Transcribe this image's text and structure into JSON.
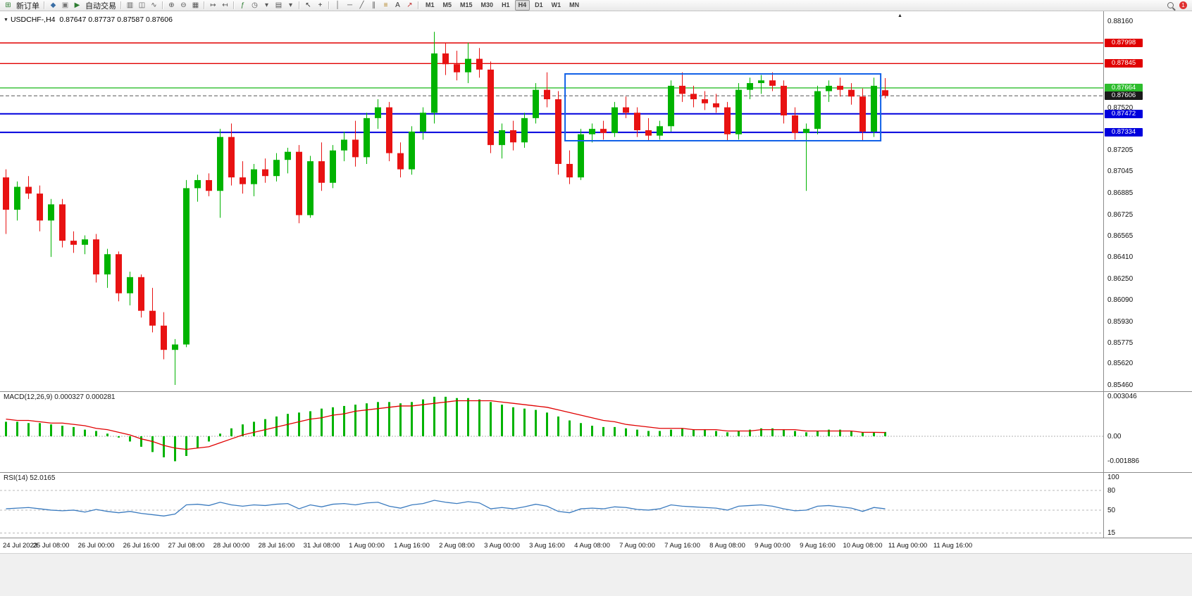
{
  "toolbar": {
    "notification_count": "1",
    "timeframes": [
      "M1",
      "M5",
      "M15",
      "M30",
      "H1",
      "H4",
      "D1",
      "W1",
      "MN"
    ],
    "active_timeframe": "H4",
    "items": [
      {
        "t": "icon",
        "n": "new-order-icon",
        "g": "⊞",
        "c": "#2e7d32"
      },
      {
        "t": "label",
        "n": "new-order-label",
        "text": "新订单"
      },
      {
        "t": "sep"
      },
      {
        "t": "icon",
        "n": "marker-icon",
        "g": "◆",
        "c": "#3a6ea5"
      },
      {
        "t": "icon",
        "n": "charts-icon",
        "g": "▣",
        "c": "#777777"
      },
      {
        "t": "icon",
        "n": "autotrade-icon",
        "g": "▶",
        "c": "#2e7d32"
      },
      {
        "t": "label",
        "n": "autotrade-label",
        "text": "自动交易"
      },
      {
        "t": "sep"
      },
      {
        "t": "icon",
        "n": "bar-chart-icon",
        "g": "▥",
        "c": "#555555"
      },
      {
        "t": "icon",
        "n": "candlestick-chart-icon",
        "g": "◫",
        "c": "#555555"
      },
      {
        "t": "icon",
        "n": "line-chart-icon",
        "g": "∿",
        "c": "#555555"
      },
      {
        "t": "sep"
      },
      {
        "t": "icon",
        "n": "zoom-in-icon",
        "g": "⊕",
        "c": "#555555"
      },
      {
        "t": "icon",
        "n": "zoom-out-icon",
        "g": "⊖",
        "c": "#555555"
      },
      {
        "t": "icon",
        "n": "tile-windows-icon",
        "g": "▦",
        "c": "#555555"
      },
      {
        "t": "sep"
      },
      {
        "t": "icon",
        "n": "auto-scroll-icon",
        "g": "↦",
        "c": "#555555"
      },
      {
        "t": "icon",
        "n": "chart-shift-icon",
        "g": "↤",
        "c": "#555555"
      },
      {
        "t": "sep"
      },
      {
        "t": "icon",
        "n": "indicators-icon",
        "g": "ƒ",
        "c": "#2e7d32"
      },
      {
        "t": "icon",
        "n": "periods-dropdown-icon",
        "g": "◷",
        "c": "#555555"
      },
      {
        "t": "icon",
        "n": "dropdown-arrow-icon",
        "g": "▾",
        "c": "#555555"
      },
      {
        "t": "icon",
        "n": "templates-icon",
        "g": "▤",
        "c": "#555555"
      },
      {
        "t": "icon",
        "n": "dropdown-arrow-icon",
        "g": "▾",
        "c": "#555555"
      },
      {
        "t": "sep"
      },
      {
        "t": "icon",
        "n": "cursor-icon",
        "g": "↖",
        "c": "#333333"
      },
      {
        "t": "icon",
        "n": "crosshair-icon",
        "g": "+",
        "c": "#333333"
      },
      {
        "t": "sep"
      },
      {
        "t": "icon",
        "n": "vertical-line-icon",
        "g": "│",
        "c": "#555555"
      },
      {
        "t": "icon",
        "n": "horizontal-line-icon",
        "g": "─",
        "c": "#555555"
      },
      {
        "t": "icon",
        "n": "trendline-icon",
        "g": "╱",
        "c": "#555555"
      },
      {
        "t": "icon",
        "n": "channel-icon",
        "g": "∥",
        "c": "#555555"
      },
      {
        "t": "icon",
        "n": "fibonacci-icon",
        "g": "≡",
        "c": "#b08020"
      },
      {
        "t": "icon",
        "n": "text-icon",
        "g": "A",
        "c": "#333333"
      },
      {
        "t": "icon",
        "n": "arrow-object-icon",
        "g": "↗",
        "c": "#c03030"
      },
      {
        "t": "sep"
      }
    ]
  },
  "chart": {
    "title": "USDCHF-,H4",
    "ohlc": "0.87647 0.87737 0.87587 0.87606"
  },
  "chart_data": {
    "type": "candlestick",
    "symbol": "USDCHF-",
    "timeframe": "H4",
    "current_bar": {
      "open": 0.87647,
      "high": 0.87737,
      "low": 0.87587,
      "close": 0.87606
    },
    "colors": {
      "bull": "#00b300",
      "bear": "#e81212",
      "background": "#ffffff"
    },
    "price_axis": {
      "ylim": [
        0.85413,
        0.88233
      ],
      "ticks": [
        "0.88160",
        "0.87520",
        "0.87205",
        "0.87045",
        "0.86885",
        "0.86725",
        "0.86565",
        "0.86410",
        "0.86250",
        "0.86090",
        "0.85930",
        "0.85775",
        "0.85620",
        "0.85460"
      ]
    },
    "price_tags": [
      {
        "value": "0.87998",
        "bg": "#e00000"
      },
      {
        "value": "0.87845",
        "bg": "#e00000"
      },
      {
        "value": "0.87664",
        "bg": "#2dbd2d"
      },
      {
        "value": "0.87606",
        "bg": "#1a1a1a"
      },
      {
        "value": "0.87472",
        "bg": "#0000dd"
      },
      {
        "value": "0.87334",
        "bg": "#0000dd"
      }
    ],
    "hlines": [
      {
        "price": 0.87998,
        "color": "#e00000",
        "style": "solid",
        "width": 1.4
      },
      {
        "price": 0.87845,
        "color": "#e00000",
        "style": "solid",
        "width": 1.4
      },
      {
        "price": 0.87664,
        "color": "#2dbd2d",
        "style": "solid",
        "width": 1.4
      },
      {
        "price": 0.87606,
        "color": "#555555",
        "style": "dashed",
        "width": 1
      },
      {
        "price": 0.87472,
        "color": "#0000dd",
        "style": "solid",
        "width": 2
      },
      {
        "price": 0.87334,
        "color": "#0000dd",
        "style": "solid",
        "width": 2
      }
    ],
    "rectangle": {
      "from_index": 49.6,
      "to_index": 77.6,
      "top": 0.87768,
      "bottom": 0.87272,
      "color": "#1060e8"
    },
    "time_labels": [
      "24 Jul 2023",
      "25 Jul 08:00",
      "26 Jul 00:00",
      "26 Jul 16:00",
      "27 Jul 08:00",
      "28 Jul 00:00",
      "28 Jul 16:00",
      "31 Jul 08:00",
      "1 Aug 00:00",
      "1 Aug 16:00",
      "2 Aug 08:00",
      "3 Aug 00:00",
      "3 Aug 16:00",
      "4 Aug 08:00",
      "7 Aug 00:00",
      "7 Aug 16:00",
      "8 Aug 08:00",
      "9 Aug 00:00",
      "9 Aug 16:00",
      "10 Aug 08:00",
      "11 Aug 00:00",
      "11 Aug 16:00"
    ],
    "candles": [
      [
        0.87,
        0.8706,
        0.8658,
        0.8676
      ],
      [
        0.8676,
        0.8697,
        0.8668,
        0.8693
      ],
      [
        0.8693,
        0.8701,
        0.8684,
        0.8688
      ],
      [
        0.8688,
        0.8694,
        0.866,
        0.8668
      ],
      [
        0.8668,
        0.8684,
        0.8641,
        0.868
      ],
      [
        0.868,
        0.8684,
        0.8648,
        0.8653
      ],
      [
        0.8653,
        0.866,
        0.8644,
        0.865
      ],
      [
        0.865,
        0.8657,
        0.8643,
        0.8654
      ],
      [
        0.8654,
        0.8658,
        0.8622,
        0.8628
      ],
      [
        0.8628,
        0.8647,
        0.8618,
        0.8643
      ],
      [
        0.8643,
        0.8645,
        0.8608,
        0.8614
      ],
      [
        0.8614,
        0.863,
        0.8605,
        0.8626
      ],
      [
        0.8626,
        0.8628,
        0.8596,
        0.8601
      ],
      [
        0.8601,
        0.8618,
        0.8585,
        0.859
      ],
      [
        0.859,
        0.86,
        0.8565,
        0.8572
      ],
      [
        0.8572,
        0.858,
        0.8546,
        0.8576
      ],
      [
        0.8576,
        0.8698,
        0.8574,
        0.8692
      ],
      [
        0.8692,
        0.8702,
        0.8682,
        0.8698
      ],
      [
        0.8698,
        0.8703,
        0.8686,
        0.869
      ],
      [
        0.869,
        0.8736,
        0.867,
        0.873
      ],
      [
        0.873,
        0.874,
        0.8694,
        0.87
      ],
      [
        0.87,
        0.8712,
        0.8688,
        0.8695
      ],
      [
        0.8695,
        0.871,
        0.8686,
        0.8706
      ],
      [
        0.8706,
        0.8714,
        0.8696,
        0.8701
      ],
      [
        0.8701,
        0.8718,
        0.8697,
        0.8713
      ],
      [
        0.8713,
        0.8722,
        0.8703,
        0.8719
      ],
      [
        0.8719,
        0.8724,
        0.8666,
        0.8672
      ],
      [
        0.8672,
        0.8716,
        0.867,
        0.8712
      ],
      [
        0.8712,
        0.8726,
        0.869,
        0.8696
      ],
      [
        0.8696,
        0.8724,
        0.8692,
        0.872
      ],
      [
        0.872,
        0.8734,
        0.8712,
        0.8728
      ],
      [
        0.8728,
        0.8742,
        0.8708,
        0.8715
      ],
      [
        0.8715,
        0.8748,
        0.871,
        0.8744
      ],
      [
        0.8744,
        0.8758,
        0.8736,
        0.8752
      ],
      [
        0.8752,
        0.8756,
        0.8712,
        0.8718
      ],
      [
        0.8718,
        0.8726,
        0.87,
        0.8706
      ],
      [
        0.8706,
        0.8738,
        0.8702,
        0.8734
      ],
      [
        0.8734,
        0.8752,
        0.8728,
        0.8748
      ],
      [
        0.8748,
        0.8808,
        0.874,
        0.8792
      ],
      [
        0.8792,
        0.88,
        0.8776,
        0.8784
      ],
      [
        0.8784,
        0.8794,
        0.8772,
        0.8778
      ],
      [
        0.8778,
        0.88,
        0.877,
        0.8788
      ],
      [
        0.8788,
        0.8796,
        0.8774,
        0.878
      ],
      [
        0.878,
        0.8786,
        0.8718,
        0.8724
      ],
      [
        0.8724,
        0.874,
        0.8714,
        0.8735
      ],
      [
        0.8735,
        0.8742,
        0.872,
        0.8726
      ],
      [
        0.8726,
        0.8748,
        0.8722,
        0.8744
      ],
      [
        0.8744,
        0.877,
        0.874,
        0.8765
      ],
      [
        0.8765,
        0.8778,
        0.8752,
        0.8758
      ],
      [
        0.8758,
        0.8764,
        0.8702,
        0.871
      ],
      [
        0.871,
        0.872,
        0.8695,
        0.87
      ],
      [
        0.87,
        0.8736,
        0.8698,
        0.8732
      ],
      [
        0.8732,
        0.874,
        0.8726,
        0.8736
      ],
      [
        0.8736,
        0.8742,
        0.8728,
        0.8733
      ],
      [
        0.8733,
        0.8756,
        0.873,
        0.8752
      ],
      [
        0.8752,
        0.876,
        0.8744,
        0.8748
      ],
      [
        0.8748,
        0.8752,
        0.873,
        0.8735
      ],
      [
        0.8735,
        0.8744,
        0.8727,
        0.8731
      ],
      [
        0.8731,
        0.8742,
        0.8728,
        0.8738
      ],
      [
        0.8738,
        0.8772,
        0.8734,
        0.8768
      ],
      [
        0.8768,
        0.8778,
        0.8756,
        0.8762
      ],
      [
        0.8762,
        0.8768,
        0.8752,
        0.8758
      ],
      [
        0.8758,
        0.8764,
        0.875,
        0.8755
      ],
      [
        0.8755,
        0.8762,
        0.8748,
        0.8752
      ],
      [
        0.8752,
        0.8756,
        0.8727,
        0.8732
      ],
      [
        0.8732,
        0.877,
        0.8728,
        0.8765
      ],
      [
        0.8765,
        0.8774,
        0.8758,
        0.877
      ],
      [
        0.877,
        0.8776,
        0.8762,
        0.8772
      ],
      [
        0.8772,
        0.8778,
        0.8764,
        0.8768
      ],
      [
        0.8768,
        0.8772,
        0.874,
        0.8746
      ],
      [
        0.8746,
        0.8752,
        0.8728,
        0.8733
      ],
      [
        0.8733,
        0.874,
        0.869,
        0.8736
      ],
      [
        0.8736,
        0.8768,
        0.8732,
        0.8764
      ],
      [
        0.8764,
        0.8772,
        0.8756,
        0.8768
      ],
      [
        0.8768,
        0.8774,
        0.876,
        0.8765
      ],
      [
        0.8765,
        0.877,
        0.8754,
        0.876
      ],
      [
        0.876,
        0.8766,
        0.8727,
        0.8734
      ],
      [
        0.8734,
        0.8774,
        0.873,
        0.8768
      ],
      [
        0.87647,
        0.87737,
        0.87587,
        0.87606
      ]
    ],
    "macd": {
      "label": "MACD(12,26,9)",
      "value_main": "0.000327",
      "value_signal": "0.000281",
      "axis_labels": [
        "0.003046",
        "0.00",
        "-0.001886"
      ],
      "ylim": [
        -0.00273,
        0.00342
      ],
      "histogram": [
        0.0011,
        0.0011,
        0.001,
        0.001,
        0.0009,
        0.0008,
        0.0007,
        0.0005,
        0.0004,
        0.0002,
        -0.0001,
        -0.0004,
        -0.0008,
        -0.0012,
        -0.0016,
        -0.0019,
        -0.0015,
        -0.0009,
        -0.0004,
        0.0002,
        0.0006,
        0.0009,
        0.0011,
        0.0013,
        0.0015,
        0.0017,
        0.0018,
        0.0019,
        0.0021,
        0.0022,
        0.0023,
        0.0024,
        0.0025,
        0.0026,
        0.0026,
        0.0025,
        0.0026,
        0.0028,
        0.003,
        0.003,
        0.0029,
        0.0029,
        0.0028,
        0.0026,
        0.0024,
        0.0022,
        0.0021,
        0.002,
        0.0018,
        0.0015,
        0.0012,
        0.001,
        0.0008,
        0.0007,
        0.0007,
        0.0006,
        0.0005,
        0.0004,
        0.0004,
        0.0005,
        0.0006,
        0.0005,
        0.0005,
        0.0004,
        0.0003,
        0.0004,
        0.0005,
        0.0006,
        0.0006,
        0.0005,
        0.0004,
        0.0003,
        0.0004,
        0.0005,
        0.0005,
        0.0004,
        0.0003,
        0.0003,
        0.000327
      ],
      "signal": [
        0.0013,
        0.0012,
        0.0012,
        0.0011,
        0.001,
        0.001,
        0.0009,
        0.0008,
        0.0006,
        0.0005,
        0.0003,
        0.0001,
        -0.0002,
        -0.0004,
        -0.0007,
        -0.0009,
        -0.001,
        -0.0009,
        -0.0008,
        -0.0005,
        -0.0002,
        0.0001,
        0.0003,
        0.0005,
        0.0007,
        0.0009,
        0.0011,
        0.0013,
        0.0014,
        0.0016,
        0.0017,
        0.0019,
        0.002,
        0.0021,
        0.0022,
        0.0023,
        0.0023,
        0.0024,
        0.0025,
        0.0026,
        0.0027,
        0.0027,
        0.0027,
        0.0027,
        0.0026,
        0.0025,
        0.0024,
        0.0023,
        0.0022,
        0.002,
        0.0018,
        0.0016,
        0.0014,
        0.0012,
        0.0011,
        0.0009,
        0.0008,
        0.0007,
        0.0006,
        0.0006,
        0.0006,
        0.0005,
        0.0005,
        0.0005,
        0.0004,
        0.0004,
        0.0004,
        0.0005,
        0.0005,
        0.0005,
        0.0005,
        0.0004,
        0.0004,
        0.0004,
        0.0004,
        0.0004,
        0.0003,
        0.0003,
        0.000281
      ]
    },
    "rsi": {
      "label": "RSI(14)",
      "value": "52.0165",
      "levels": [
        100,
        80,
        50,
        15
      ],
      "level_lines": [
        80,
        50,
        15
      ],
      "ylim": [
        8,
        108
      ],
      "values": [
        52,
        53,
        54,
        52,
        50,
        49,
        50,
        47,
        51,
        48,
        46,
        48,
        45,
        43,
        41,
        44,
        58,
        59,
        57,
        62,
        58,
        56,
        58,
        57,
        59,
        60,
        52,
        58,
        55,
        59,
        60,
        58,
        61,
        62,
        56,
        53,
        58,
        60,
        65,
        62,
        60,
        63,
        61,
        52,
        54,
        52,
        55,
        59,
        56,
        48,
        46,
        52,
        53,
        52,
        55,
        54,
        51,
        50,
        52,
        58,
        56,
        55,
        54,
        53,
        50,
        56,
        57,
        58,
        56,
        52,
        49,
        50,
        56,
        57,
        55,
        53,
        48,
        54,
        52.0165
      ]
    }
  }
}
